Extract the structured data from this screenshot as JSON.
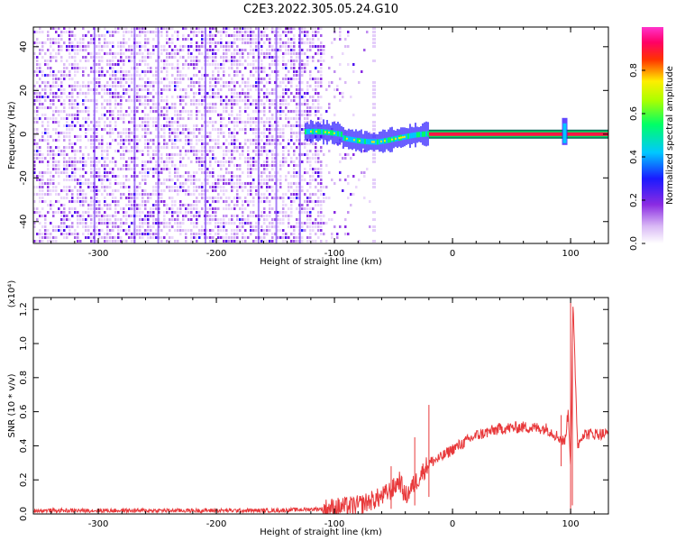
{
  "title": "C2E3.2022.305.05.24.G10",
  "chart_data": [
    {
      "type": "heatmap",
      "xlabel": "Height of straight line (km)",
      "ylabel": "Frequency (Hz)",
      "xlim": [
        -355,
        132
      ],
      "ylim": [
        -50,
        49
      ],
      "xticks": [
        -300,
        -200,
        -100,
        0,
        100
      ],
      "xtick_labels": [
        "-300",
        "-200",
        "-100",
        "0",
        "100"
      ],
      "yticks": [
        -40,
        -20,
        0,
        20,
        40
      ],
      "ytick_labels": [
        "-40",
        "-20",
        "0",
        "20",
        "40"
      ],
      "colorbar": {
        "label": "Normalized spectral amplitude",
        "range": [
          0,
          1
        ],
        "ticks": [
          0.0,
          0.2,
          0.4,
          0.6,
          0.8
        ],
        "tick_labels": [
          "0.0",
          "0.2",
          "0.4",
          "0.6",
          "0.8"
        ],
        "colormap": "rainbow"
      },
      "features": {
        "noise_region_x": [
          -355,
          -70
        ],
        "dense_noise_edge_x": -110,
        "signal_line_freq": 0,
        "signal_start_x": -110,
        "spike_x": 95
      }
    },
    {
      "type": "line",
      "xlabel": "Height of straight line (km)",
      "ylabel": "SNR (10 * v/v)",
      "y_scale_label": "(x10⁴)",
      "xlim": [
        -355,
        132
      ],
      "ylim": [
        0,
        1.27
      ],
      "xticks": [
        -300,
        -200,
        -100,
        0,
        100
      ],
      "xtick_labels": [
        "-300",
        "-200",
        "-100",
        "0",
        "100"
      ],
      "yticks": [
        0.0,
        0.2,
        0.4,
        0.6,
        0.8,
        1.0,
        1.2
      ],
      "ytick_labels": [
        "0.0",
        "0.2",
        "0.4",
        "0.6",
        "0.8",
        "1.0",
        "1.2"
      ],
      "color": "#e8383a",
      "series": [
        {
          "x": [
            -355,
            -300,
            -250,
            -200,
            -150,
            -110,
            -80,
            -60,
            -50,
            -45,
            -40,
            -30,
            -20,
            -10,
            0,
            20,
            40,
            60,
            80,
            90,
            95,
            98,
            100,
            102,
            106,
            110,
            132
          ],
          "values": [
            0.02,
            0.02,
            0.02,
            0.02,
            0.02,
            0.03,
            0.05,
            0.1,
            0.15,
            0.2,
            0.1,
            0.2,
            0.3,
            0.33,
            0.38,
            0.46,
            0.5,
            0.51,
            0.5,
            0.45,
            0.42,
            0.6,
            0.3,
            1.22,
            0.4,
            0.47,
            0.47
          ]
        }
      ],
      "spikes": [
        {
          "x": 100,
          "y": 1.24,
          "min": 0.0
        },
        {
          "x": 101.5,
          "y": 1.0,
          "min": 0.05
        },
        {
          "x": -20,
          "y": 0.64,
          "min": 0.1
        },
        {
          "x": -32,
          "y": 0.45,
          "min": 0.05
        },
        {
          "x": -52,
          "y": 0.28,
          "min": 0.03
        },
        {
          "x": 92,
          "y": 0.58,
          "min": 0.28
        }
      ]
    }
  ]
}
